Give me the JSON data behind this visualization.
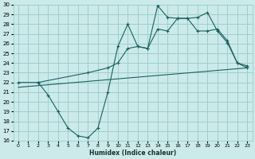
{
  "xlabel": "Humidex (Indice chaleur)",
  "bg_color": "#cceaea",
  "grid_color": "#9ecece",
  "line_color": "#1a6060",
  "xlim": [
    -0.5,
    23.5
  ],
  "ylim": [
    16,
    30
  ],
  "xticks": [
    0,
    1,
    2,
    3,
    4,
    5,
    6,
    7,
    8,
    9,
    10,
    11,
    12,
    13,
    14,
    15,
    16,
    17,
    18,
    19,
    20,
    21,
    22,
    23
  ],
  "yticks": [
    16,
    17,
    18,
    19,
    20,
    21,
    22,
    23,
    24,
    25,
    26,
    27,
    28,
    29,
    30
  ],
  "line1_x": [
    2,
    3,
    4,
    5,
    6,
    7,
    8,
    9,
    10,
    11,
    12,
    13,
    14,
    15,
    16,
    17,
    18,
    19,
    20,
    21,
    22,
    23
  ],
  "line1_y": [
    22.0,
    20.7,
    19.0,
    17.3,
    16.5,
    16.3,
    17.3,
    21.0,
    25.7,
    28.0,
    25.7,
    25.5,
    29.9,
    28.7,
    28.6,
    28.6,
    28.7,
    29.2,
    27.3,
    26.1,
    24.0,
    23.5
  ],
  "line2_x": [
    0,
    2,
    7,
    9,
    10,
    11,
    12,
    13,
    14,
    15,
    16,
    17,
    18,
    19,
    20,
    21,
    22,
    23
  ],
  "line2_y": [
    22.0,
    22.0,
    23.0,
    23.5,
    24.0,
    25.5,
    25.7,
    25.5,
    27.5,
    27.3,
    28.6,
    28.6,
    27.3,
    27.3,
    27.5,
    26.3,
    24.0,
    23.7
  ],
  "line3_x": [
    0,
    23
  ],
  "line3_y": [
    21.5,
    23.5
  ]
}
